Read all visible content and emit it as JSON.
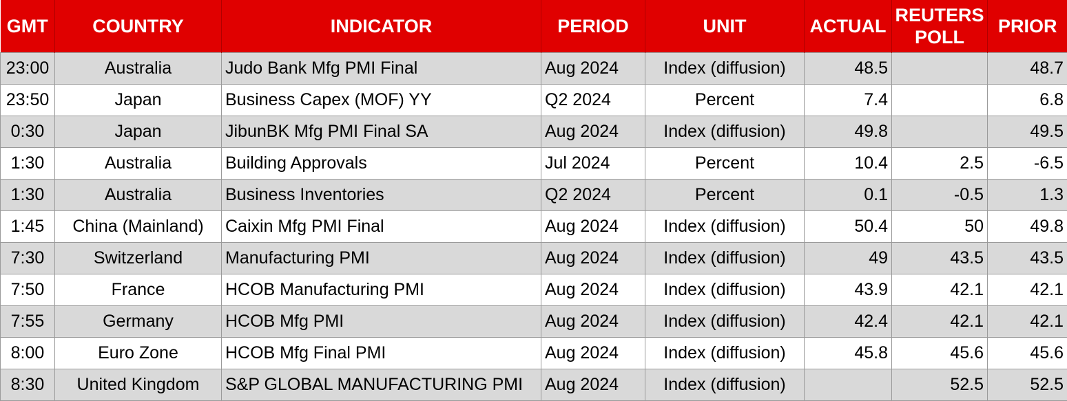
{
  "headers": {
    "gmt": "GMT",
    "country": "COUNTRY",
    "indicator": "INDICATOR",
    "period": "PERIOD",
    "unit": "UNIT",
    "actual": "ACTUAL",
    "poll": "REUTERS POLL",
    "prior": "PRIOR"
  },
  "colors": {
    "header_bg": "#e00000",
    "header_text": "#ffffff",
    "row_shade": "#d9d9d9",
    "row_plain": "#ffffff"
  },
  "rows": [
    {
      "gmt": "23:00",
      "country": "Australia",
      "indicator": "Judo Bank Mfg PMI Final",
      "period": "Aug 2024",
      "unit": "Index (diffusion)",
      "actual": "48.5",
      "poll": "",
      "prior": "48.7"
    },
    {
      "gmt": "23:50",
      "country": "Japan",
      "indicator": "Business Capex (MOF) YY",
      "period": "Q2 2024",
      "unit": "Percent",
      "actual": "7.4",
      "poll": "",
      "prior": "6.8"
    },
    {
      "gmt": "0:30",
      "country": "Japan",
      "indicator": "JibunBK Mfg PMI Final SA",
      "period": "Aug 2024",
      "unit": "Index (diffusion)",
      "actual": "49.8",
      "poll": "",
      "prior": "49.5"
    },
    {
      "gmt": "1:30",
      "country": "Australia",
      "indicator": "Building Approvals",
      "period": "Jul 2024",
      "unit": "Percent",
      "actual": "10.4",
      "poll": "2.5",
      "prior": "-6.5"
    },
    {
      "gmt": "1:30",
      "country": "Australia",
      "indicator": "Business Inventories",
      "period": "Q2 2024",
      "unit": "Percent",
      "actual": "0.1",
      "poll": "-0.5",
      "prior": "1.3"
    },
    {
      "gmt": "1:45",
      "country": "China (Mainland)",
      "indicator": "Caixin Mfg PMI Final",
      "period": "Aug 2024",
      "unit": "Index (diffusion)",
      "actual": "50.4",
      "poll": "50",
      "prior": "49.8"
    },
    {
      "gmt": "7:30",
      "country": "Switzerland",
      "indicator": "Manufacturing PMI",
      "period": "Aug 2024",
      "unit": "Index (diffusion)",
      "actual": "49",
      "poll": "43.5",
      "prior": "43.5"
    },
    {
      "gmt": "7:50",
      "country": "France",
      "indicator": "HCOB Manufacturing PMI",
      "period": "Aug 2024",
      "unit": "Index (diffusion)",
      "actual": "43.9",
      "poll": "42.1",
      "prior": "42.1"
    },
    {
      "gmt": "7:55",
      "country": "Germany",
      "indicator": "HCOB Mfg PMI",
      "period": "Aug 2024",
      "unit": "Index (diffusion)",
      "actual": "42.4",
      "poll": "42.1",
      "prior": "42.1"
    },
    {
      "gmt": "8:00",
      "country": "Euro Zone",
      "indicator": "HCOB Mfg Final PMI",
      "period": "Aug 2024",
      "unit": "Index (diffusion)",
      "actual": "45.8",
      "poll": "45.6",
      "prior": "45.6"
    },
    {
      "gmt": "8:30",
      "country": "United Kingdom",
      "indicator": "S&P GLOBAL MANUFACTURING PMI",
      "period": "Aug 2024",
      "unit": "Index (diffusion)",
      "actual": "",
      "poll": "52.5",
      "prior": "52.5"
    }
  ]
}
